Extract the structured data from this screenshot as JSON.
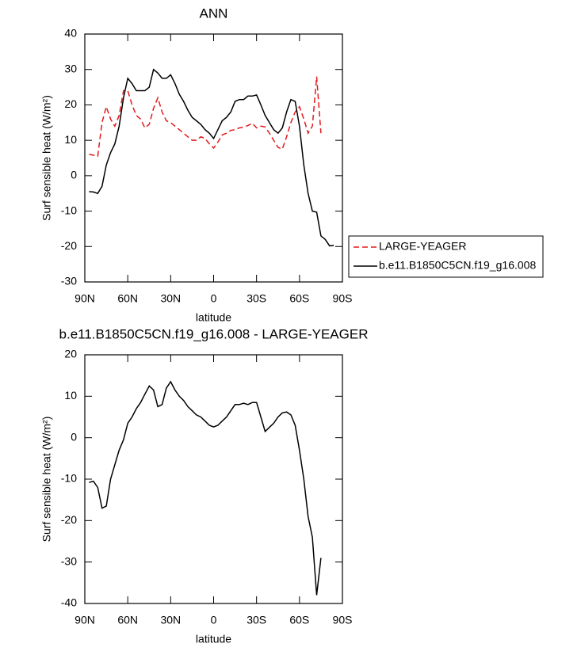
{
  "chart_data": [
    {
      "type": "line",
      "title": "ANN",
      "xlabel": "latitude",
      "ylabel": "Surf sensible heat (W/m²)",
      "x": [
        87,
        84,
        81,
        78,
        75,
        72,
        69,
        66,
        63,
        60,
        57,
        54,
        51,
        48,
        45,
        42,
        39,
        36,
        33,
        30,
        27,
        24,
        21,
        18,
        15,
        12,
        9,
        6,
        3,
        0,
        -3,
        -6,
        -9,
        -12,
        -15,
        -18,
        -21,
        -24,
        -27,
        -30,
        -33,
        -36,
        -39,
        -42,
        -45,
        -48,
        -51,
        -54,
        -57,
        -60,
        -63,
        -66,
        -69,
        -72,
        -75,
        -78,
        -81,
        -84
      ],
      "xlim": [
        90,
        -90
      ],
      "xticks": [
        {
          "value": 90,
          "label": "90N"
        },
        {
          "value": 60,
          "label": "60N"
        },
        {
          "value": 30,
          "label": "30N"
        },
        0,
        {
          "value": -30,
          "label": "30S"
        },
        {
          "value": -60,
          "label": "60S"
        },
        {
          "value": -90,
          "label": "90S"
        }
      ],
      "ylim": [
        -30,
        40
      ],
      "yticks": [
        -30,
        -20,
        -10,
        0,
        10,
        20,
        30,
        40
      ],
      "legend": "right",
      "series": [
        {
          "name": "LARGE-YEAGER",
          "color": "#e41a1c",
          "dashed": true,
          "values": [
            6,
            5.8,
            5.5,
            15,
            19.5,
            16,
            14,
            17,
            24,
            24,
            20,
            17,
            16,
            13.5,
            14.5,
            19,
            22,
            18,
            15.5,
            15,
            14,
            13,
            12,
            11,
            10,
            10,
            11,
            10.5,
            9,
            7.8,
            9.5,
            11.5,
            12,
            12.8,
            13,
            13.5,
            13.7,
            14.2,
            14.8,
            13.5,
            14,
            13.8,
            12,
            10,
            8,
            7.5,
            11,
            15,
            18,
            19.5,
            16,
            12,
            14,
            28,
            12,
            null,
            null,
            null
          ]
        },
        {
          "name": "b.e11.B1850C5CN.f19_g16.008",
          "color": "#000000",
          "dashed": false,
          "values": [
            -4.5,
            -4.6,
            -5,
            -3,
            3,
            6.5,
            9,
            14,
            22,
            27.5,
            26,
            24,
            24,
            24,
            25,
            30,
            29,
            27.5,
            27.5,
            28.5,
            26,
            23,
            21,
            18.5,
            16.5,
            15.5,
            14.5,
            13,
            12,
            10.5,
            13,
            15.5,
            16.5,
            18,
            21,
            21.5,
            21.5,
            22.5,
            22.5,
            22.8,
            20,
            17,
            15,
            13,
            12,
            13.5,
            18,
            21.5,
            21,
            14,
            3,
            -5,
            -10,
            -10.3,
            -17,
            -18,
            -19.8,
            -19.7
          ]
        }
      ]
    },
    {
      "type": "line",
      "title": "b.e11.B1850C5CN.f19_g16.008 - LARGE-YEAGER",
      "xlabel": "latitude",
      "ylabel": "Surf sensible heat (W/m²)",
      "x": [
        87,
        84,
        81,
        78,
        75,
        72,
        69,
        66,
        63,
        60,
        57,
        54,
        51,
        48,
        45,
        42,
        39,
        36,
        33,
        30,
        27,
        24,
        21,
        18,
        15,
        12,
        9,
        6,
        3,
        0,
        -3,
        -6,
        -9,
        -12,
        -15,
        -18,
        -21,
        -24,
        -27,
        -30,
        -33,
        -36,
        -39,
        -42,
        -45,
        -48,
        -51,
        -54,
        -57,
        -60,
        -63,
        -66,
        -69,
        -72,
        -75,
        -78,
        -81,
        -84
      ],
      "xlim": [
        90,
        -90
      ],
      "xticks": [
        {
          "value": 90,
          "label": "90N"
        },
        {
          "value": 60,
          "label": "60N"
        },
        {
          "value": 30,
          "label": "30N"
        },
        0,
        {
          "value": -30,
          "label": "30S"
        },
        {
          "value": -60,
          "label": "60S"
        },
        {
          "value": -90,
          "label": "90S"
        }
      ],
      "ylim": [
        -40,
        20
      ],
      "yticks": [
        -40,
        -30,
        -20,
        -10,
        0,
        10,
        20
      ],
      "series": [
        {
          "color": "#000000",
          "dashed": false,
          "values": [
            -10.8,
            -10.5,
            -12,
            -17,
            -16.5,
            -10,
            -6.5,
            -3,
            -0.5,
            3.5,
            5,
            7,
            8.5,
            10.5,
            12.5,
            11.5,
            7.5,
            8,
            12,
            13.5,
            11.5,
            10,
            9,
            7.5,
            6.5,
            5.5,
            5,
            4,
            3,
            2.6,
            3,
            4,
            5,
            6.5,
            8,
            8,
            8.3,
            8,
            8.5,
            8.5,
            5,
            1.5,
            2.5,
            3.5,
            5,
            6,
            6.2,
            5.5,
            3,
            -3,
            -10,
            -19,
            -24,
            -38,
            -29,
            null,
            null,
            null
          ]
        }
      ]
    }
  ]
}
